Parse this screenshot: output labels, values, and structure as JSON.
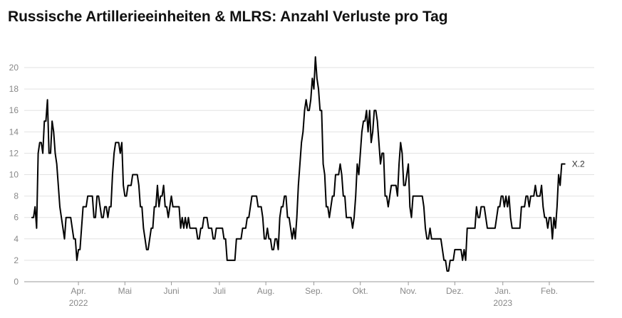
{
  "chart_data": {
    "type": "line",
    "title": "Russische Artillerieeinheiten & MLRS: Anzahl Verluste pro Tag",
    "xlabel": "",
    "ylabel": "",
    "ylim": [
      0,
      21
    ],
    "yticks": [
      0,
      2,
      4,
      6,
      8,
      10,
      12,
      14,
      16,
      18,
      20
    ],
    "grid": true,
    "x_unit": "day index (0 = 2022-03-03, last = 2023-02-23)",
    "xlim": [
      -5,
      363
    ],
    "xticks": [
      {
        "day": 30,
        "label": "Apr.",
        "sublabel": "2022"
      },
      {
        "day": 60,
        "label": "Mai",
        "sublabel": ""
      },
      {
        "day": 90,
        "label": "Juni",
        "sublabel": ""
      },
      {
        "day": 121,
        "label": "Juli",
        "sublabel": ""
      },
      {
        "day": 151,
        "label": "Aug.",
        "sublabel": ""
      },
      {
        "day": 182,
        "label": "Sep.",
        "sublabel": ""
      },
      {
        "day": 212,
        "label": "Okt.",
        "sublabel": ""
      },
      {
        "day": 243,
        "label": "Nov.",
        "sublabel": ""
      },
      {
        "day": 273,
        "label": "Dez.",
        "sublabel": ""
      },
      {
        "day": 304,
        "label": "Jan.",
        "sublabel": "2023"
      },
      {
        "day": 334,
        "label": "Feb.",
        "sublabel": ""
      }
    ],
    "series": [
      {
        "name": "X.2",
        "start_day": 0,
        "values": [
          6,
          6,
          7,
          5,
          12,
          13,
          13,
          12,
          15,
          15,
          17,
          12,
          12,
          15,
          14,
          12,
          11,
          9,
          7,
          6,
          5,
          4,
          6,
          6,
          6,
          6,
          5,
          4,
          4,
          2,
          3,
          3,
          5,
          7,
          7,
          7,
          8,
          8,
          8,
          8,
          6,
          6,
          8,
          8,
          7,
          6,
          6,
          7,
          7,
          6,
          7,
          7,
          10,
          12,
          13,
          13,
          13,
          12,
          13,
          9,
          8,
          8,
          9,
          9,
          9,
          10,
          10,
          10,
          10,
          9,
          7,
          7,
          5,
          4,
          3,
          3,
          4,
          5,
          5,
          7,
          7,
          9,
          7,
          8,
          8,
          9,
          7,
          7,
          6,
          7,
          8,
          7,
          7,
          7,
          7,
          7,
          5,
          6,
          5,
          6,
          5,
          6,
          5,
          5,
          5,
          5,
          5,
          4,
          4,
          5,
          5,
          6,
          6,
          6,
          5,
          5,
          5,
          4,
          4,
          5,
          5,
          5,
          5,
          5,
          4,
          4,
          2,
          2,
          2,
          2,
          2,
          2,
          4,
          4,
          4,
          4,
          5,
          5,
          5,
          6,
          6,
          7,
          8,
          8,
          8,
          8,
          7,
          7,
          7,
          6,
          4,
          4,
          5,
          4,
          4,
          3,
          3,
          4,
          4,
          3,
          6,
          7,
          7,
          8,
          8,
          6,
          6,
          5,
          4,
          5,
          4,
          6,
          9,
          11,
          13,
          14,
          16,
          17,
          16,
          16,
          17,
          19,
          18,
          21,
          19,
          18,
          16,
          16,
          11,
          10,
          7,
          7,
          6,
          7,
          8,
          8,
          10,
          10,
          10,
          11,
          10,
          8,
          8,
          6,
          6,
          6,
          6,
          5,
          6,
          8,
          11,
          10,
          12,
          14,
          15,
          15,
          16,
          14,
          16,
          13,
          14,
          16,
          16,
          15,
          13,
          11,
          12,
          12,
          8,
          8,
          7,
          8,
          9,
          9,
          9,
          9,
          8,
          11,
          13,
          12,
          9,
          9,
          10,
          11,
          7,
          6,
          8,
          8,
          8,
          8,
          8,
          8,
          8,
          7,
          5,
          4,
          4,
          5,
          4,
          4,
          4,
          4,
          4,
          4,
          4,
          3,
          2,
          2,
          1,
          1,
          2,
          2,
          2,
          3,
          3,
          3,
          3,
          3,
          2,
          3,
          2,
          5,
          5,
          5,
          5,
          5,
          5,
          7,
          6,
          6,
          7,
          7,
          7,
          6,
          5,
          5,
          5,
          5,
          5,
          5,
          6,
          7,
          7,
          8,
          8,
          7,
          8,
          7,
          8,
          6,
          5,
          5,
          5,
          5,
          5,
          5,
          7,
          7,
          7,
          8,
          8,
          7,
          8,
          8,
          8,
          9,
          8,
          8,
          8,
          9,
          7,
          6,
          6,
          5,
          6,
          6,
          4,
          6,
          5,
          7,
          10,
          9,
          11,
          11,
          11
        ]
      }
    ]
  }
}
